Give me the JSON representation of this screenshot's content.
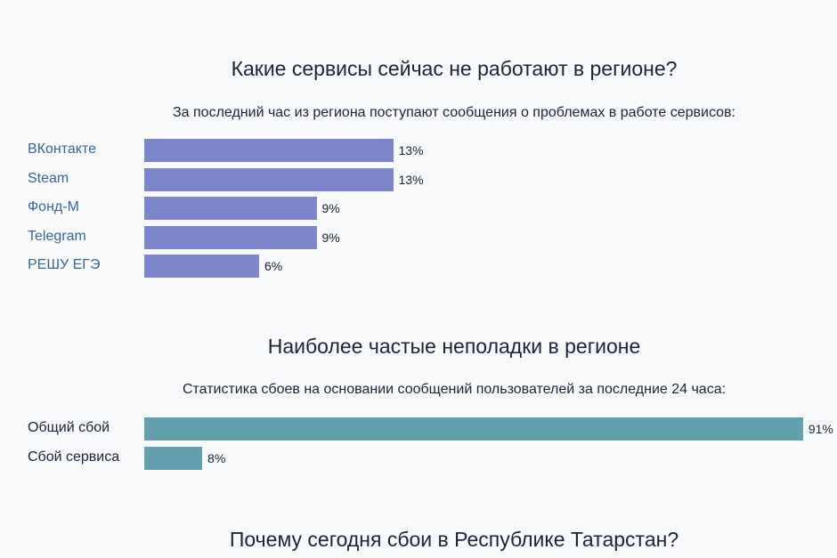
{
  "chart_data": [
    {
      "type": "bar",
      "orientation": "horizontal",
      "title": "Какие сервисы сейчас не работают в регионе?",
      "subtitle": "За последний час из региона поступают сообщения о проблемах в работе сервисов:",
      "categories": [
        "ВКонтакте",
        "Steam",
        "Фонд-М",
        "Telegram",
        "РЕШУ ЕГЭ"
      ],
      "values": [
        13,
        13,
        9,
        9,
        6
      ],
      "value_labels": [
        "13%",
        "13%",
        "9%",
        "9%",
        "6%"
      ],
      "unit": "%",
      "color": "#7d86cb",
      "label_color": "#3b6693"
    },
    {
      "type": "bar",
      "orientation": "horizontal",
      "title": "Наиболее частые неполадки в регионе",
      "subtitle": "Статистика сбоев на основании сообщений пользователей за последние 24 часа:",
      "categories": [
        "Общий сбой",
        "Сбой сервиса"
      ],
      "values": [
        91,
        8
      ],
      "value_labels": [
        "91%",
        "8%"
      ],
      "unit": "%",
      "color": "#649fad",
      "label_color": "#1c2233"
    }
  ],
  "section3": {
    "title": "Почему сегодня сбои в Республике Татарстан?"
  }
}
